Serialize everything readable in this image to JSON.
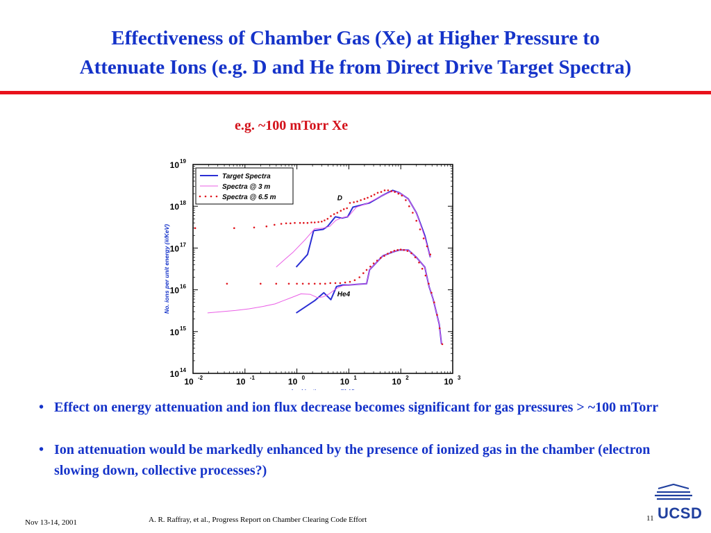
{
  "slide": {
    "title_line1": "Effectiveness of Chamber Gas (Xe) at Higher Pressure to",
    "title_line2": "Attenuate Ions (e.g. D and He from Direct Drive Target Spectra)",
    "subtitle": "e.g. ~100 mTorr Xe",
    "bullets": [
      "Effect on energy attenuation and ion flux decrease becomes significant for gas pressures > ~100 mTorr",
      "Ion attenuation would be markedly enhanced by the presence of ionized gas in the chamber (electron slowing down, collective processes?)"
    ],
    "footer_date": "Nov 13-14, 2001",
    "footer_citation": "A. R. Raffray, et al., Progress Report on Chamber Clearing Code Effort",
    "page_number": "11",
    "logo_text": "UCSD"
  },
  "colors": {
    "title": "#1533c9",
    "accent": "#d3111a",
    "rule": "#e8121b",
    "target": "#2b2fd4",
    "spectra3m": "#ea5ee6",
    "spectra65m": "#e0141c"
  },
  "chart_data": {
    "type": "line",
    "xlabel": "Ion kinetic energy (KeV)",
    "ylabel": "No. ions per unit energy (#/KeV)",
    "xscale": "log",
    "yscale": "log",
    "xlim": [
      0.01,
      1000
    ],
    "ylim": [
      100000000000000.0,
      1e+19
    ],
    "x_ticks": [
      {
        "value": 0.01,
        "base": "10",
        "exp": "-2"
      },
      {
        "value": 0.1,
        "base": "10",
        "exp": "-1"
      },
      {
        "value": 1,
        "base": "10",
        "exp": "0"
      },
      {
        "value": 10,
        "base": "10",
        "exp": "1"
      },
      {
        "value": 100,
        "base": "10",
        "exp": "2"
      },
      {
        "value": 1000,
        "base": "10",
        "exp": "3"
      }
    ],
    "y_ticks": [
      {
        "value": 100000000000000.0,
        "base": "10",
        "exp": "14"
      },
      {
        "value": 1000000000000000.0,
        "base": "10",
        "exp": "15"
      },
      {
        "value": 1e+16,
        "base": "10",
        "exp": "16"
      },
      {
        "value": 1e+17,
        "base": "10",
        "exp": "17"
      },
      {
        "value": 1e+18,
        "base": "10",
        "exp": "18"
      },
      {
        "value": 1e+19,
        "base": "10",
        "exp": "19"
      }
    ],
    "legend_position": "top-left",
    "annotations": [
      {
        "text": "D",
        "x": 6.0,
        "y": 1.4e+18
      },
      {
        "text": "He4",
        "x": 6.0,
        "y": 7000000000000000.0
      }
    ],
    "groups": [
      {
        "label": "D",
        "series": [
          {
            "name": "Target Spectra",
            "style": "line",
            "x": [
              0.97,
              1.6,
              2.1,
              3.2,
              3.9,
              5.5,
              7.3,
              9.5,
              12,
              19,
              25,
              44,
              70,
              95,
              140,
              200,
              290,
              370
            ],
            "y": [
              3.5e+16,
              7e+16,
              2.6e+17,
              2.8e+17,
              3.3e+17,
              5.6e+17,
              5.2e+17,
              5.6e+17,
              9.5e+17,
              1.1e+18,
              1.2e+18,
              1.8e+18,
              2.4e+18,
              2.1e+18,
              1.5e+18,
              7e+17,
              2e+17,
              6e+16
            ]
          },
          {
            "name": "Spectra @ 3 m",
            "style": "line",
            "x": [
              0.4,
              0.6,
              0.85,
              1.45,
              2.2,
              3.2,
              4.3,
              5.6,
              7.4,
              9.8,
              14,
              22,
              44,
              70,
              95,
              140,
              200,
              290,
              370
            ],
            "y": [
              3.5e+16,
              5.5e+16,
              8e+16,
              1.6e+17,
              2.9e+17,
              3e+17,
              3.3e+17,
              4.6e+17,
              5.3e+17,
              5.7e+17,
              9.5e+17,
              1.15e+18,
              1.8e+18,
              2.3e+18,
              2.1e+18,
              1.5e+18,
              7e+17,
              1.8e+17,
              6e+16
            ]
          },
          {
            "name": "Spectra @ 6.5 m",
            "style": "dots",
            "x": [
              0.011,
              0.062,
              0.15,
              0.26,
              0.37,
              0.5,
              0.62,
              0.75,
              0.91,
              1.15,
              1.35,
              1.6,
              1.9,
              2.2,
              2.6,
              3.0,
              3.4,
              3.9,
              4.5,
              5.2,
              6.0,
              7.0,
              8.0,
              9.2,
              10.5,
              12.5,
              14.5,
              17,
              20,
              23,
              27,
              31,
              36,
              42,
              49,
              57,
              66,
              77,
              90,
              105,
              125,
              145,
              170,
              200,
              235,
              275,
              320,
              370
            ],
            "y": [
              3e+17,
              3e+17,
              3.1e+17,
              3.3e+17,
              3.6e+17,
              3.8e+17,
              3.9e+17,
              3.9e+17,
              4e+17,
              4e+17,
              4e+17,
              4e+17,
              4.1e+17,
              4.1e+17,
              4.2e+17,
              4.3e+17,
              4.6e+17,
              5e+17,
              5.8e+17,
              6.5e+17,
              7e+17,
              7.8e+17,
              8.5e+17,
              9e+17,
              1.2e+18,
              1.25e+18,
              1.3e+18,
              1.4e+18,
              1.5e+18,
              1.6e+18,
              1.75e+18,
              1.9e+18,
              2.1e+18,
              2.2e+18,
              2.4e+18,
              2.4e+18,
              2.3e+18,
              2.2e+18,
              2e+18,
              1.8e+18,
              1.4e+18,
              1e+18,
              7e+17,
              4.5e+17,
              2.8e+17,
              1.7e+17,
              1.1e+17,
              7e+16
            ]
          }
        ]
      },
      {
        "label": "He4",
        "series": [
          {
            "name": "Target Spectra",
            "style": "line",
            "x": [
              0.97,
              2.2,
              3.3,
              4.5,
              5.8,
              7.5,
              9.8,
              14,
              22,
              25,
              45,
              70,
              95,
              140,
              200,
              290,
              350,
              420,
              480,
              550,
              610
            ],
            "y": [
              2800000000000000.0,
              5500000000000000.0,
              8500000000000000.0,
              5800000000000000.0,
              1.2e+16,
              1.3e+16,
              1.3e+16,
              1.35e+16,
              1.4e+16,
              3e+16,
              6.5e+16,
              8e+16,
              9e+16,
              9e+16,
              6e+16,
              3.5e+16,
              1.2e+16,
              6000000000000000.0,
              3000000000000000.0,
              1500000000000000.0,
              500000000000000.0
            ]
          },
          {
            "name": "Spectra @ 3 m",
            "style": "line",
            "x": [
              0.019,
              0.035,
              0.065,
              0.12,
              0.22,
              0.38,
              0.55,
              0.8,
              1.2,
              1.8,
              2.5,
              3.2,
              4.2,
              5.6,
              7.5,
              10,
              14,
              22,
              25,
              45,
              70,
              95,
              140,
              200,
              290,
              350,
              420,
              480,
              550,
              610
            ],
            "y": [
              2800000000000000.0,
              3000000000000000.0,
              3200000000000000.0,
              3500000000000000.0,
              4000000000000000.0,
              4600000000000000.0,
              5500000000000000.0,
              6600000000000000.0,
              8000000000000000.0,
              7800000000000000.0,
              6500000000000000.0,
              6800000000000000.0,
              8000000000000000.0,
              1.05e+16,
              1.25e+16,
              1.3e+16,
              1.35e+16,
              1.4e+16,
              3e+16,
              6.5e+16,
              8e+16,
              9e+16,
              9e+16,
              6e+16,
              3.5e+16,
              1.2e+16,
              6000000000000000.0,
              3000000000000000.0,
              1500000000000000.0,
              500000000000000.0
            ]
          },
          {
            "name": "Spectra @ 6.5 m",
            "style": "dots",
            "x": [
              0.045,
              0.2,
              0.4,
              0.7,
              1.0,
              1.3,
              1.7,
              2.2,
              2.8,
              3.5,
              4.4,
              5.5,
              6.8,
              8.5,
              10.5,
              13,
              16,
              19,
              22,
              26,
              30,
              35,
              41,
              48,
              56,
              65,
              75,
              87,
              100,
              115,
              135,
              160,
              190,
              225,
              260,
              300,
              345,
              390,
              440,
              500,
              560,
              630
            ],
            "y": [
              1.4e+16,
              1.4e+16,
              1.4e+16,
              1.4e+16,
              1.4e+16,
              1.4e+16,
              1.4e+16,
              1.4e+16,
              1.4e+16,
              1.4e+16,
              1.45e+16,
              1.45e+16,
              1.45e+16,
              1.5e+16,
              1.55e+16,
              1.7e+16,
              2e+16,
              2.5e+16,
              3e+16,
              3.6e+16,
              4.3e+16,
              5e+16,
              5.8e+16,
              6.5e+16,
              7.3e+16,
              8e+16,
              8.6e+16,
              9e+16,
              9.2e+16,
              9e+16,
              8.5e+16,
              7.5e+16,
              6e+16,
              4.5e+16,
              3.2e+16,
              2.2e+16,
              1.4e+16,
              8500000000000000.0,
              5000000000000000.0,
              2500000000000000.0,
              1200000000000000.0,
              500000000000000.0
            ]
          }
        ]
      }
    ]
  }
}
